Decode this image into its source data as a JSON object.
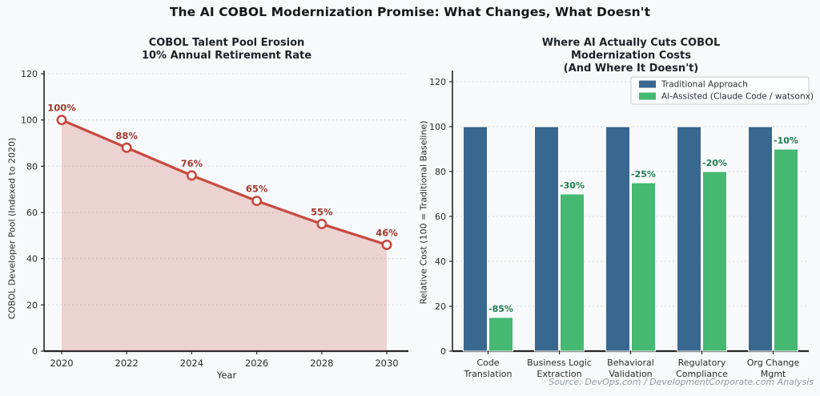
{
  "main_title": "The AI COBOL Modernization Promise: What Changes, What Doesn't",
  "source_note": "Source: DevOps.com / DevelopmentCorporate.com Analysis",
  "colors": {
    "background": "#f8f9fb",
    "line_red": "#c84a3f",
    "area_fill": "rgba(200,74,63,0.22)",
    "point_label_red": "#a3392d",
    "bar_blue": "#38678f",
    "bar_green": "#45b872",
    "bar_label_green": "#1e7d4f",
    "grid": "#d4d7dc",
    "spine": "#262626",
    "legend_border": "#c7cad0",
    "legend_bg": "#fcfdfe"
  },
  "chart_data": [
    {
      "type": "area",
      "title": "COBOL Talent Pool Erosion\n10% Annual Retirement Rate",
      "xlabel": "Year",
      "ylabel": "COBOL Developer Pool (Indexed to 2020)",
      "x": [
        2020,
        2022,
        2024,
        2026,
        2028,
        2030
      ],
      "values": [
        100,
        88,
        76,
        65,
        55,
        46
      ],
      "point_labels": [
        "100%",
        "88%",
        "76%",
        "65%",
        "55%",
        "46%"
      ],
      "ylim": [
        0,
        120
      ],
      "yticks": [
        0,
        20,
        40,
        60,
        80,
        100,
        120
      ],
      "grid": "horizontal-dashed",
      "legend_position": "none"
    },
    {
      "type": "bar",
      "title": "Where AI Actually Cuts COBOL Modernization Costs\n(And Where It Doesn't)",
      "xlabel": "",
      "ylabel": "Relative Cost (100 = Traditional Baseline)",
      "categories": [
        "Code\nTranslation",
        "Business Logic\nExtraction",
        "Behavioral\nValidation",
        "Regulatory\nCompliance",
        "Org Change\nMgmt"
      ],
      "series": [
        {
          "name": "Traditional Approach",
          "values": [
            100,
            100,
            100,
            100,
            100
          ],
          "color": "#38678f",
          "labels": [
            "",
            "",
            "",
            "",
            ""
          ]
        },
        {
          "name": "AI-Assisted (Claude Code / watsonx)",
          "values": [
            15,
            70,
            75,
            80,
            90
          ],
          "color": "#45b872",
          "labels": [
            "-85%",
            "-30%",
            "-25%",
            "-20%",
            "-10%"
          ]
        }
      ],
      "ylim": [
        0,
        120
      ],
      "yticks": [
        0,
        20,
        40,
        60,
        80,
        100,
        120
      ],
      "grid": "horizontal-dashed",
      "legend_position": "upper right"
    }
  ]
}
